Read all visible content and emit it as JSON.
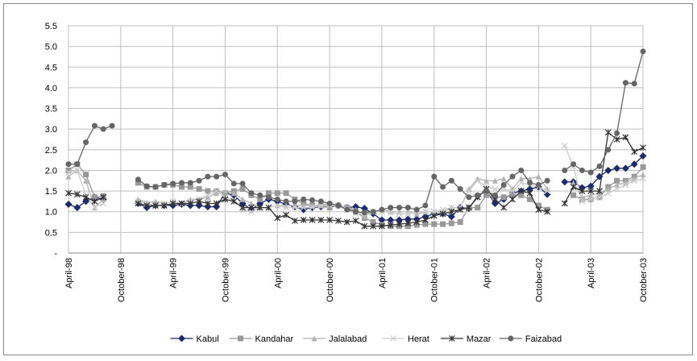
{
  "chart_data": {
    "type": "line",
    "categories": [
      "April-98",
      null,
      null,
      null,
      null,
      null,
      "October-98",
      null,
      null,
      null,
      null,
      null,
      "April-99",
      null,
      null,
      null,
      null,
      null,
      "October-99",
      null,
      null,
      null,
      null,
      null,
      "April-00",
      null,
      null,
      null,
      null,
      null,
      "October-00",
      null,
      null,
      null,
      null,
      null,
      "April-01",
      null,
      null,
      null,
      null,
      null,
      "October-01",
      null,
      null,
      null,
      null,
      null,
      "April-02",
      null,
      null,
      null,
      null,
      null,
      "October-02",
      null,
      null,
      null,
      null,
      null,
      "April-03",
      null,
      null,
      null,
      null,
      null,
      "October-03"
    ],
    "ylim": [
      0,
      5.5
    ],
    "yticks": [
      {
        "value": 0,
        "label": "-"
      },
      0.5,
      {
        "value": 1,
        "label": "1.0"
      },
      1.5,
      {
        "value": 2,
        "label": "2.0"
      },
      2.5,
      {
        "value": 3,
        "label": "3.0"
      },
      3.5,
      {
        "value": 4,
        "label": "4.0"
      },
      4.5,
      {
        "value": 5,
        "label": "5.0"
      },
      5.5
    ],
    "grid": true,
    "legend": "bottom",
    "series": [
      {
        "name": "Kabul",
        "color": "#1f2a6b",
        "marker": "diamond",
        "values": [
          1.18,
          1.1,
          1.25,
          1.35,
          1.3,
          null,
          null,
          null,
          1.2,
          1.1,
          1.15,
          1.15,
          1.15,
          1.18,
          1.15,
          1.15,
          1.12,
          1.12,
          1.45,
          1.4,
          1.2,
          1.05,
          1.2,
          1.3,
          1.25,
          1.18,
          1.12,
          1.05,
          1.1,
          1.12,
          1.12,
          1.15,
          1.1,
          1.12,
          1.08,
          0.95,
          0.8,
          0.8,
          0.8,
          0.82,
          0.82,
          0.88,
          0.95,
          0.95,
          0.88,
          1.1,
          1.08,
          1.38,
          1.5,
          1.2,
          1.3,
          1.45,
          1.5,
          1.55,
          1.6,
          1.42,
          null,
          1.72,
          1.72,
          1.58,
          1.62,
          1.85,
          2.0,
          2.05,
          2.05,
          2.15,
          2.35
        ]
      },
      {
        "name": "Kandahar",
        "color": "#999999",
        "marker": "square",
        "values": [
          2.0,
          2.15,
          1.9,
          1.35,
          1.38,
          null,
          null,
          null,
          1.7,
          1.6,
          1.6,
          1.65,
          1.65,
          1.6,
          1.6,
          1.55,
          1.5,
          1.5,
          1.45,
          1.5,
          1.55,
          1.4,
          1.3,
          1.45,
          1.45,
          1.45,
          1.3,
          1.2,
          1.15,
          1.15,
          1.1,
          1.15,
          1.1,
          1.0,
          0.85,
          0.75,
          0.68,
          0.65,
          0.65,
          0.65,
          0.68,
          0.7,
          0.7,
          0.7,
          0.72,
          0.75,
          1.1,
          1.1,
          1.4,
          1.35,
          1.35,
          1.4,
          1.4,
          1.3,
          1.15,
          1.05,
          null,
          null,
          1.4,
          1.3,
          1.3,
          1.35,
          1.6,
          1.75,
          1.75,
          1.85,
          2.08
        ]
      },
      {
        "name": "Jalalabad",
        "color": "#b3b3b3",
        "marker": "triangle",
        "values": [
          1.85,
          2.0,
          1.75,
          1.1,
          1.3,
          null,
          null,
          null,
          1.3,
          1.22,
          1.25,
          1.2,
          1.25,
          1.2,
          1.3,
          1.3,
          1.35,
          1.45,
          1.5,
          1.45,
          1.3,
          1.2,
          1.1,
          1.1,
          1.15,
          1.15,
          1.15,
          1.15,
          1.15,
          1.15,
          1.2,
          1.15,
          1.1,
          1.05,
          0.9,
          1.0,
          1.05,
          1.0,
          1.0,
          1.0,
          0.95,
          1.0,
          1.0,
          1.0,
          1.1,
          1.1,
          1.55,
          1.8,
          1.75,
          1.75,
          1.8,
          1.55,
          1.8,
          1.8,
          1.85,
          1.55,
          null,
          null,
          1.7,
          1.35,
          1.4,
          1.45,
          1.55,
          1.65,
          1.7,
          1.8,
          1.9
        ]
      },
      {
        "name": "Herat",
        "color": "#cccccc",
        "marker": "x",
        "values": [
          1.95,
          2.0,
          1.4,
          1.1,
          1.2,
          null,
          null,
          null,
          1.25,
          1.2,
          1.15,
          1.2,
          1.25,
          1.2,
          1.25,
          1.3,
          1.4,
          1.5,
          1.35,
          1.3,
          1.05,
          1.0,
          1.1,
          1.1,
          1.15,
          1.1,
          1.1,
          1.1,
          1.1,
          1.15,
          1.15,
          1.15,
          1.05,
          0.95,
          0.95,
          1.0,
          1.0,
          0.98,
          0.95,
          0.95,
          1.0,
          1.0,
          1.0,
          1.05,
          1.1,
          1.1,
          1.5,
          1.75,
          1.6,
          1.55,
          1.55,
          1.5,
          1.7,
          1.65,
          1.6,
          1.5,
          null,
          2.6,
          2.1,
          1.25,
          1.3,
          1.35,
          1.45,
          1.55,
          1.65,
          1.75,
          1.8
        ]
      },
      {
        "name": "Mazar",
        "color": "#333333",
        "marker": "star",
        "values": [
          1.45,
          1.42,
          1.35,
          1.25,
          1.35,
          null,
          null,
          null,
          1.2,
          1.15,
          1.15,
          1.15,
          1.2,
          1.2,
          1.2,
          1.25,
          1.2,
          1.2,
          1.3,
          1.25,
          1.1,
          1.1,
          1.1,
          1.1,
          0.85,
          0.92,
          0.78,
          0.8,
          0.8,
          0.8,
          0.8,
          0.78,
          0.75,
          0.78,
          0.65,
          0.65,
          0.65,
          0.68,
          0.7,
          0.72,
          0.75,
          0.8,
          0.9,
          0.95,
          1.0,
          1.05,
          1.1,
          1.35,
          1.55,
          1.3,
          1.1,
          1.3,
          1.5,
          1.45,
          1.05,
          1.0,
          null,
          1.2,
          1.6,
          1.5,
          1.5,
          1.5,
          2.92,
          2.75,
          2.8,
          2.45,
          2.55
        ]
      },
      {
        "name": "Faizabad",
        "color": "#666666",
        "marker": "circle",
        "values": [
          2.15,
          2.15,
          2.68,
          3.08,
          3.0,
          3.08,
          null,
          null,
          1.78,
          1.62,
          1.6,
          1.65,
          1.68,
          1.7,
          1.7,
          1.75,
          1.85,
          1.85,
          1.9,
          1.68,
          1.68,
          1.45,
          1.4,
          1.35,
          1.3,
          1.25,
          1.25,
          1.3,
          1.28,
          1.25,
          1.2,
          1.15,
          1.05,
          1.0,
          0.98,
          1.0,
          1.05,
          1.1,
          1.1,
          1.1,
          1.05,
          1.15,
          1.85,
          1.6,
          1.75,
          1.55,
          1.35,
          1.4,
          1.5,
          1.4,
          1.65,
          1.85,
          2.0,
          1.7,
          1.65,
          1.75,
          null,
          2.0,
          2.15,
          2.0,
          1.95,
          2.1,
          2.5,
          2.9,
          4.12,
          4.1,
          4.88
        ]
      }
    ]
  }
}
